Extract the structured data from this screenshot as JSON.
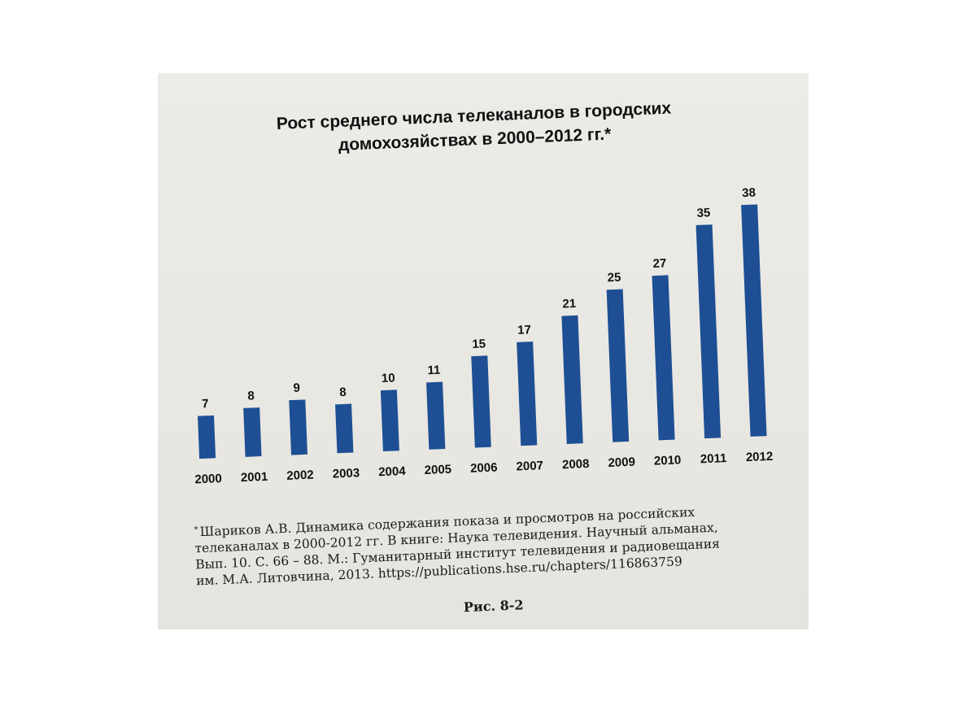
{
  "chart_data": {
    "type": "bar",
    "title": "Рост среднего числа телеканалов в городских домохозяйствах в 2000–2012 гг.*",
    "title_lines": [
      "Рост среднего числа телеканалов в городских",
      "домохозяйствах в 2000–2012 гг.*"
    ],
    "categories": [
      "2000",
      "2001",
      "2002",
      "2003",
      "2004",
      "2005",
      "2006",
      "2007",
      "2008",
      "2009",
      "2010",
      "2011",
      "2012"
    ],
    "values": [
      7,
      8,
      9,
      8,
      10,
      11,
      15,
      17,
      21,
      25,
      27,
      35,
      38
    ],
    "xlabel": "",
    "ylabel": "",
    "ylim": [
      0,
      40
    ],
    "grid": false,
    "legend": "none",
    "bar_color": "#1e4f94"
  },
  "footnote": {
    "marker": "*",
    "lines": [
      "Шариков А.В. Динамика содержания показа и просмотров на российских",
      "телеканалах в 2000-2012 гг. В книге: Наука телевидения. Научный альманах,",
      "Вып. 10. С. 66 – 88. М.: Гуманитарный институт телевидения и радиовещания",
      "им. М.А. Литовчина, 2013. https://publications.hse.ru/chapters/116863759"
    ]
  },
  "figure_label": "Рис. 8-2"
}
